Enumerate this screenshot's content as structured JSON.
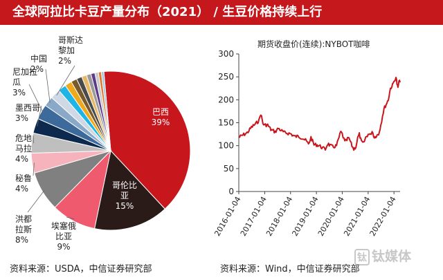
{
  "header": {
    "title": "全球阿拉比卡豆产量分布（2021） /   生豆价格持续上行"
  },
  "chart_data": [
    {
      "type": "pie",
      "title": "",
      "slices": [
        {
          "label": "巴西",
          "value": 39,
          "text": "39%",
          "color": "#c8161d"
        },
        {
          "label": "哥伦比亚",
          "value": 15,
          "text": "15%",
          "color": "#2a1a18"
        },
        {
          "label": "埃塞俄比亚",
          "value": 9,
          "text": "9%",
          "color": "#f05a6e"
        },
        {
          "label": "洪都拉斯",
          "value": 8,
          "text": "8%",
          "color": "#808080"
        },
        {
          "label": "秘鲁",
          "value": 4,
          "text": "4%",
          "color": "#f7b3bc"
        },
        {
          "label": "危地马拉",
          "value": 4,
          "text": "4%",
          "color": "#bfbfbf"
        },
        {
          "label": "墨西哥",
          "value": 3,
          "text": "3%",
          "color": "#0d2a4e"
        },
        {
          "label": "尼加拉瓜",
          "value": 3,
          "text": "3%",
          "color": "#3c6a9b"
        },
        {
          "label": "中国",
          "value": 2,
          "text": "2%",
          "color": "#8aa8c8"
        },
        {
          "label": "哥斯达黎加",
          "value": 2,
          "text": "2%",
          "color": "#cfd9e6"
        },
        {
          "label": "",
          "value": 1.6,
          "color": "#1eb4e6"
        },
        {
          "label": "",
          "value": 1.4,
          "color": "#f0a81c"
        },
        {
          "label": "",
          "value": 1.2,
          "color": "#7a5a2a"
        },
        {
          "label": "",
          "value": 1.1,
          "color": "#4a4a4a"
        },
        {
          "label": "",
          "value": 1.0,
          "color": "#e8b86a"
        },
        {
          "label": "",
          "value": 0.9,
          "color": "#9a9a9a"
        },
        {
          "label": "",
          "value": 0.8,
          "color": "#5c3a8c"
        },
        {
          "label": "",
          "value": 0.7,
          "color": "#c9c9c9"
        },
        {
          "label": "",
          "value": 0.6,
          "color": "#e07a2a"
        },
        {
          "label": "",
          "value": 0.5,
          "color": "#a3c4e0"
        }
      ],
      "labels": {
        "brazil": [
          "巴西",
          "39%"
        ],
        "colombia": [
          "哥伦比",
          "亚",
          "15%"
        ],
        "ethiopia": [
          "埃塞俄",
          "比亚",
          "9%"
        ],
        "honduras": [
          "洪都",
          "拉斯",
          "8%"
        ],
        "peru": [
          "秘鲁",
          "4%"
        ],
        "guatemala": [
          "危地",
          "马拉",
          "4%"
        ],
        "mexico": [
          "墨西哥",
          "3%"
        ],
        "nicaragua": [
          "尼加拉",
          "瓜",
          "3%"
        ],
        "china": [
          "中国",
          "2%"
        ],
        "costarica": [
          "哥斯达",
          "黎加",
          "2%"
        ]
      },
      "source": "资料来源：USDA，中信证券研究部"
    },
    {
      "type": "line",
      "title": "期货收盘价(连续):NYBOT咖啡",
      "xlabel": "",
      "ylabel": "",
      "ylim": [
        0,
        300
      ],
      "yticks": [
        0,
        50,
        100,
        150,
        200,
        250,
        300
      ],
      "xlim": [
        "2016-01-04",
        "2022-03-31"
      ],
      "xticks": [
        "2016-01-04",
        "2017-01-04",
        "2018-01-04",
        "2019-01-04",
        "2020-01-04",
        "2021-01-04",
        "2022-01-04"
      ],
      "grid": false,
      "series": [
        {
          "color": "#c8161d",
          "x": [
            "2016-01-04",
            "2016-03-01",
            "2016-05-01",
            "2016-07-01",
            "2016-09-01",
            "2016-10-15",
            "2016-11-10",
            "2016-12-10",
            "2017-01-04",
            "2017-02-15",
            "2017-04-01",
            "2017-06-01",
            "2017-07-15",
            "2017-09-01",
            "2017-10-15",
            "2017-12-01",
            "2018-01-04",
            "2018-03-01",
            "2018-05-01",
            "2018-07-01",
            "2018-08-15",
            "2018-09-15",
            "2018-10-20",
            "2018-12-01",
            "2019-01-04",
            "2019-02-15",
            "2019-04-01",
            "2019-05-10",
            "2019-06-15",
            "2019-07-15",
            "2019-09-01",
            "2019-10-15",
            "2019-11-20",
            "2019-12-15",
            "2020-01-04",
            "2020-02-10",
            "2020-03-10",
            "2020-03-25",
            "2020-04-20",
            "2020-05-20",
            "2020-06-15",
            "2020-07-15",
            "2020-08-10",
            "2020-09-01",
            "2020-10-01",
            "2020-11-01",
            "2020-12-01",
            "2021-01-04",
            "2021-02-01",
            "2021-03-01",
            "2021-04-01",
            "2021-05-01",
            "2021-06-01",
            "2021-07-01",
            "2021-07-26",
            "2021-08-15",
            "2021-09-15",
            "2021-10-15",
            "2021-11-15",
            "2021-12-15",
            "2022-01-04",
            "2022-02-01",
            "2022-02-15",
            "2022-03-01",
            "2022-03-15",
            "2022-03-31"
          ],
          "y": [
            118,
            123,
            128,
            140,
            148,
            155,
            170,
            148,
            145,
            145,
            135,
            130,
            138,
            132,
            128,
            127,
            126,
            120,
            120,
            116,
            110,
            103,
            118,
            102,
            102,
            100,
            95,
            92,
            105,
            100,
            97,
            100,
            118,
            130,
            125,
            108,
            112,
            117,
            112,
            100,
            92,
            98,
            117,
            125,
            108,
            105,
            118,
            125,
            123,
            132,
            118,
            122,
            125,
            145,
            165,
            180,
            190,
            200,
            225,
            232,
            240,
            250,
            235,
            225,
            240,
            238
          ]
        }
      ],
      "source": "资料来源：Wind，中信证券研究部"
    }
  ],
  "watermark": {
    "box": "钛",
    "text": "钛媒体"
  }
}
